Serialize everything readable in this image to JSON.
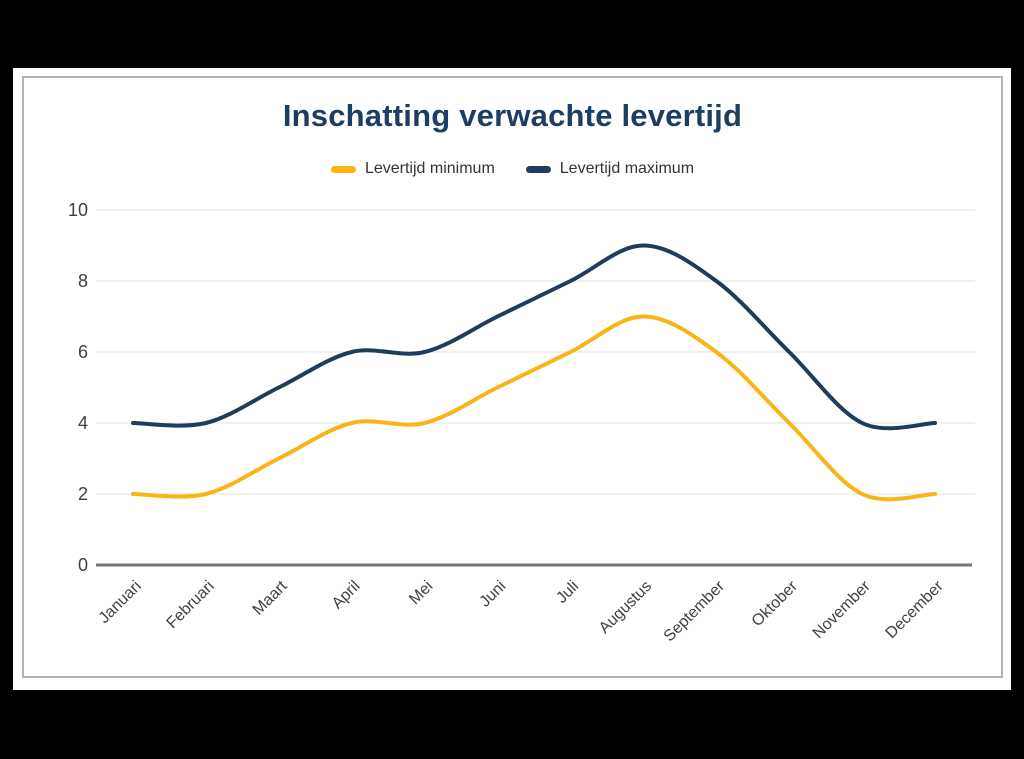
{
  "chart_data": {
    "type": "line",
    "title": "Inschatting verwachte levertijd",
    "categories": [
      "Januari",
      "Februari",
      "Maart",
      "April",
      "Mei",
      "Juni",
      "Juli",
      "Augustus",
      "September",
      "Oktober",
      "November",
      "December"
    ],
    "series": [
      {
        "name": "Levertijd minimum",
        "color": "#FBB416",
        "values": [
          2,
          2,
          3,
          4,
          4,
          5,
          6,
          7,
          6,
          4,
          2,
          2
        ]
      },
      {
        "name": "Levertijd maximum",
        "color": "#1F3C5D",
        "values": [
          4,
          4,
          5,
          6,
          6,
          7,
          8,
          9,
          8,
          6,
          4,
          4
        ]
      }
    ],
    "xlabel": "",
    "ylabel": "",
    "ylim": [
      0,
      10
    ],
    "yticks": [
      0,
      2,
      4,
      6,
      8,
      10
    ],
    "grid": true,
    "legend_position": "top",
    "curve": "smooth"
  },
  "colors": {
    "title": "#1D3E63",
    "axis_text": "#404040",
    "legend_text": "#333333",
    "gridline": "#E2E2E2",
    "baseline": "#757575",
    "card_border": "#B4B4B4",
    "page_bg": "#000000",
    "sheet_bg": "#FFFFFF"
  }
}
